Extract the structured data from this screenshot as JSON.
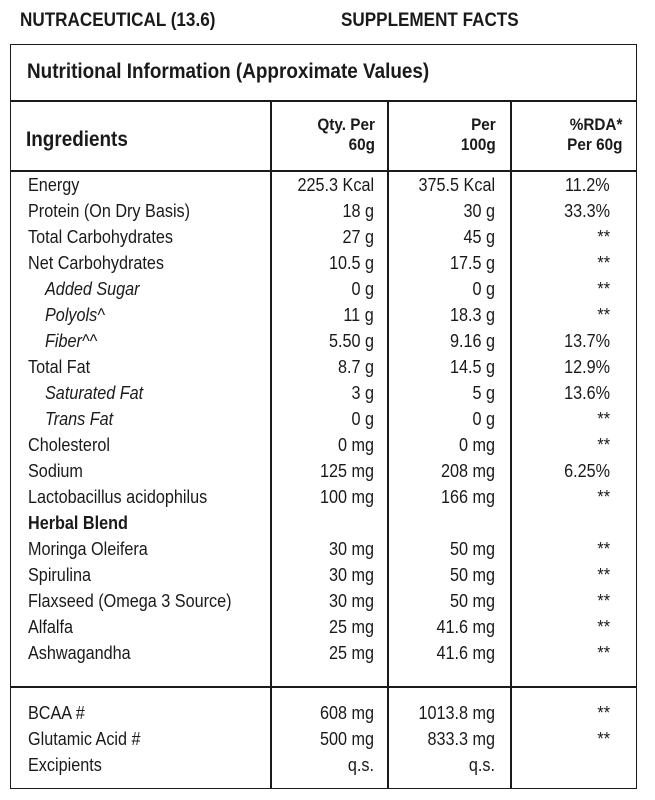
{
  "header": {
    "left": "NUTRACEUTICAL (13.6)",
    "right": "SUPPLEMENT FACTS"
  },
  "table": {
    "title": "Nutritional Information (Approximate Values)",
    "columns": {
      "ingredients": "Ingredients",
      "qty_per_60g": "Qty. Per\n60g",
      "per_100g": "Per\n100g",
      "rda": "%RDA*\nPer 60g"
    },
    "rows": [
      {
        "name": "Energy",
        "qty": "225.3 Kcal",
        "per100": "375.5 Kcal",
        "rda": "11.2%"
      },
      {
        "name": "Protein (On Dry Basis)",
        "qty": "18 g",
        "per100": "30 g",
        "rda": "33.3%"
      },
      {
        "name": "Total Carbohydrates",
        "qty": "27 g",
        "per100": "45 g",
        "rda": "**"
      },
      {
        "name": "Net Carbohydrates",
        "qty": "10.5 g",
        "per100": "17.5 g",
        "rda": "**"
      },
      {
        "name": "Added Sugar",
        "qty": "0 g",
        "per100": "0 g",
        "rda": "**"
      },
      {
        "name": "Polyols^",
        "qty": "11 g",
        "per100": "18.3 g",
        "rda": "**"
      },
      {
        "name": "Fiber^^",
        "qty": "5.50 g",
        "per100": "9.16 g",
        "rda": "13.7%"
      },
      {
        "name": "Total Fat",
        "qty": "8.7 g",
        "per100": "14.5 g",
        "rda": "12.9%"
      },
      {
        "name": "Saturated Fat",
        "qty": "3 g",
        "per100": "5 g",
        "rda": "13.6%"
      },
      {
        "name": "Trans Fat",
        "qty": "0 g",
        "per100": "0 g",
        "rda": "**"
      },
      {
        "name": "Cholesterol",
        "qty": "0 mg",
        "per100": "0 mg",
        "rda": "**"
      },
      {
        "name": "Sodium",
        "qty": "125 mg",
        "per100": "208 mg",
        "rda": "6.25%"
      },
      {
        "name": "Lactobacillus acidophilus",
        "qty": "100 mg",
        "per100": "166 mg",
        "rda": "**"
      },
      {
        "name": "Herbal Blend",
        "qty": "",
        "per100": "",
        "rda": ""
      },
      {
        "name": "Moringa Oleifera",
        "qty": "30 mg",
        "per100": "50 mg",
        "rda": "**"
      },
      {
        "name": "Spirulina",
        "qty": "30 mg",
        "per100": "50 mg",
        "rda": "**"
      },
      {
        "name": "Flaxseed (Omega 3 Source)",
        "qty": "30 mg",
        "per100": "50 mg",
        "rda": "**"
      },
      {
        "name": "Alfalfa",
        "qty": "25 mg",
        "per100": "41.6 mg",
        "rda": "**"
      },
      {
        "name": "Ashwagandha",
        "qty": "25 mg",
        "per100": "41.6 mg",
        "rda": "**"
      }
    ],
    "extra_rows": [
      {
        "name": "BCAA #",
        "qty": "608 mg",
        "per100": "1013.8 mg",
        "rda": "**"
      },
      {
        "name": "Glutamic Acid #",
        "qty": "500 mg",
        "per100": "833.3 mg",
        "rda": "**"
      },
      {
        "name": "Excipients",
        "qty": "q.s.",
        "per100": "q.s.",
        "rda": ""
      }
    ]
  }
}
